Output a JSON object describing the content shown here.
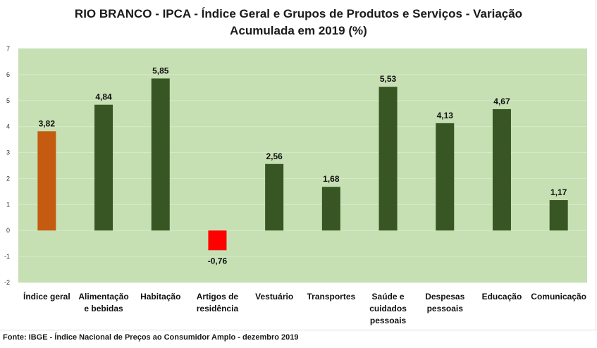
{
  "chart_data": {
    "type": "bar",
    "title_line1": "RIO BRANCO - IPCA - Índice Geral e Grupos de Produtos e Serviços - Variação",
    "title_line2": "Acumulada em 2019 (%)",
    "categories": [
      [
        "Índice geral"
      ],
      [
        "Alimentação",
        "e bebidas"
      ],
      [
        "Habitação"
      ],
      [
        "Artigos de",
        "residência"
      ],
      [
        "Vestuário"
      ],
      [
        "Transportes"
      ],
      [
        "Saúde e",
        "cuidados",
        "pessoais"
      ],
      [
        "Despesas",
        "pessoais"
      ],
      [
        "Educação"
      ],
      [
        "Comunicação"
      ]
    ],
    "values": [
      3.82,
      4.84,
      5.85,
      -0.76,
      2.56,
      1.68,
      5.53,
      4.13,
      4.67,
      1.17
    ],
    "value_labels": [
      "3,82",
      "4,84",
      "5,85",
      "-0,76",
      "2,56",
      "1,68",
      "5,53",
      "4,13",
      "4,67",
      "1,17"
    ],
    "bar_colors": [
      "#c55a11",
      "#375623",
      "#375623",
      "#ff0000",
      "#375623",
      "#375623",
      "#375623",
      "#375623",
      "#375623",
      "#375623"
    ],
    "ylim": [
      -2,
      7
    ],
    "yticks": [
      7,
      6,
      5,
      4,
      3,
      2,
      1,
      0,
      -1,
      -2
    ],
    "xlabel": "",
    "ylabel": "",
    "grid": true,
    "legend": "none",
    "plot_background": "#c6e0b4",
    "gridline_color": "#d6e9c8",
    "source": "Fonte: IBGE - Índice Nacional de Preços ao Consumidor Amplo - dezembro 2019"
  }
}
